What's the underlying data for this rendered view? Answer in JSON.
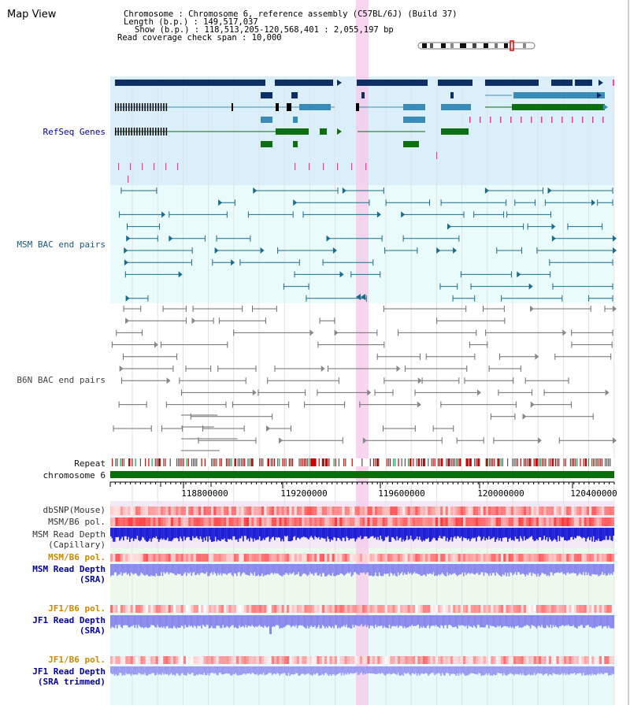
{
  "header": {
    "title": "Map View",
    "info_lines": [
      "Chromosome     : Chromosome 6, reference assembly (C57BL/6J) (Build 37)",
      "Length (b.p.) : 149,517,037",
      "Show (b.p.) : 118,513,205-120,568,401 : 2,055,197 bp",
      "Read coverage check span : 10,000"
    ]
  },
  "tracks": {
    "refseq": "RefSeq Genes",
    "msm_bac": "MSM BAC end pairs",
    "b6n_bac": "B6N BAC end pairs",
    "repeat": "Repeat",
    "chromosome": "chromosome 6",
    "dbsnp": "dbSNP(Mouse)",
    "msm_b6_pol": "MSM/B6 pol.",
    "msm_depth_cap_1": "MSM Read Depth",
    "msm_depth_cap_2": "(Capillary)",
    "msm_b6_pol_sra": "MSM/B6 pol.",
    "msm_depth_sra_1": "MSM Read Depth",
    "msm_depth_sra_2": "(SRA)",
    "jf1_b6_pol": "JF1/B6 pol.",
    "jf1_depth_sra_1": "JF1 Read Depth",
    "jf1_depth_sra_2": "(SRA)",
    "jf1_b6_pol_2": "JF1/B6 pol.",
    "jf1_depth_trim_1": "JF1 Read Depth",
    "jf1_depth_trim_2": "(SRA trimmed)"
  },
  "axis": {
    "ticks": [
      "118800000",
      "119200000",
      "119600000",
      "120000000",
      "120400000"
    ],
    "range": [
      118513205,
      120568401
    ]
  },
  "colors": {
    "refseq_bg": "#dbeffa",
    "msm_bg": "#e9fbfb",
    "gene_dark": "#0d2f63",
    "gene_mid": "#3a8cb8",
    "gene_green": "#0e6e12",
    "bac_teal": "#1a6c8c",
    "bac_gray": "#6e6e6e",
    "chrom_green": "#0c6d0c",
    "highlight": "#f7c8ea",
    "label_blue": "#0000aa",
    "label_orange": "#d08a00",
    "label_gray": "#333333",
    "depth_blue": "#1f1fd8",
    "depth_lav": "#8a8aee",
    "pol_red": "#ff4040"
  }
}
